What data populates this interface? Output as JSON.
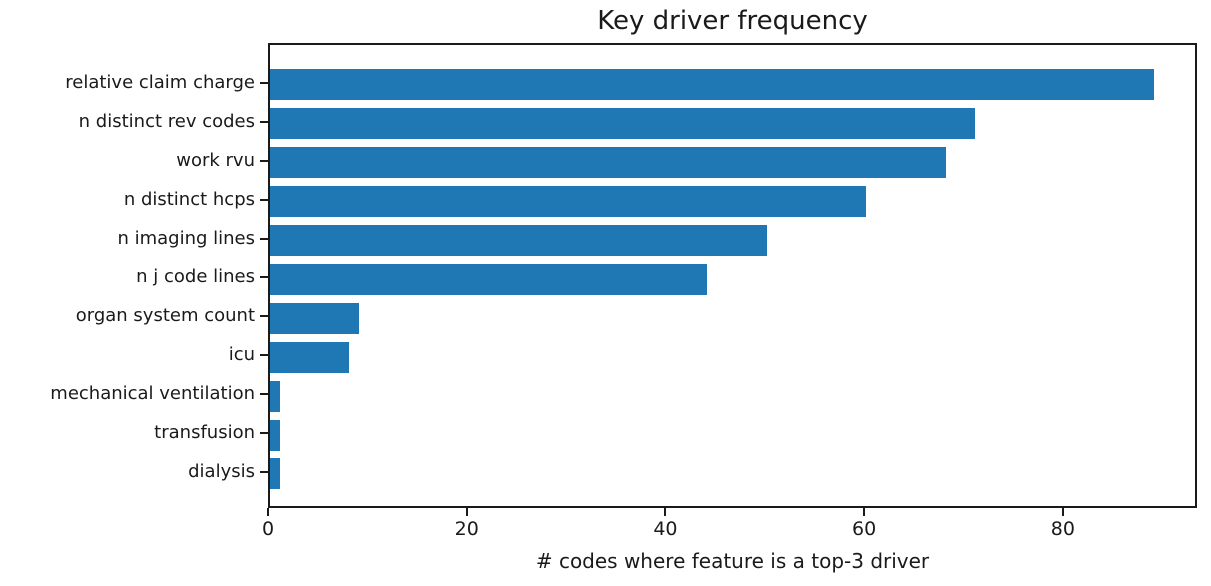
{
  "figure": {
    "title": "Key driver frequency",
    "xlabel": "# codes where feature is a top-3 driver"
  },
  "chart_data": {
    "type": "bar",
    "orientation": "horizontal",
    "title": "Key driver frequency",
    "xlabel": "# codes where feature is a top-3 driver",
    "ylabel": "",
    "categories": [
      "relative claim charge",
      "n distinct rev codes",
      "work rvu",
      "n distinct hcps",
      "n imaging lines",
      "n j code lines",
      "organ system count",
      "icu",
      "mechanical ventilation",
      "transfusion",
      "dialysis"
    ],
    "values": [
      89,
      71,
      68,
      60,
      50,
      44,
      9,
      8,
      1,
      1,
      1
    ],
    "xticks": [
      0,
      20,
      40,
      60,
      80
    ],
    "xlim": [
      0,
      93.5
    ],
    "bar_color": "#1f77b4",
    "grid": false,
    "legend_position": "none"
  }
}
